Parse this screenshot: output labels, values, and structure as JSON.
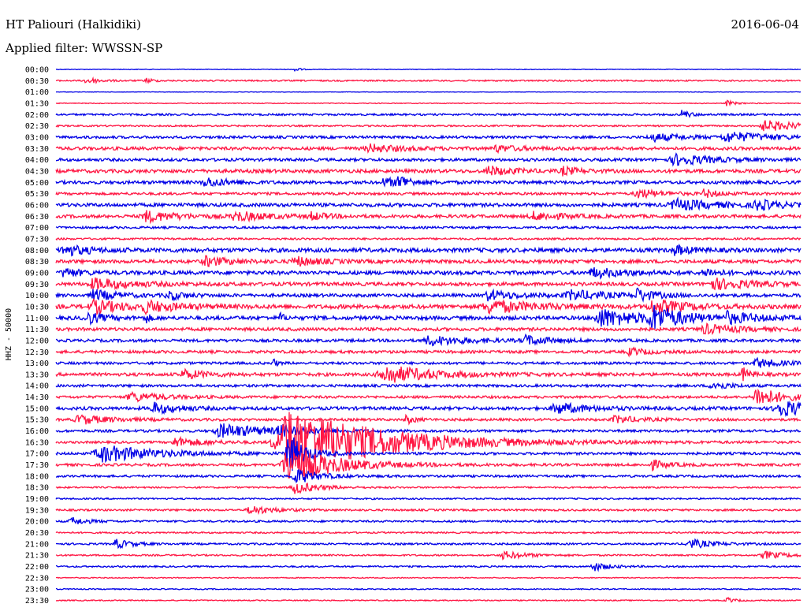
{
  "header": {
    "station": "HT Paliouri (Halkidiki)",
    "date": "2016-06-04",
    "filter": "Applied filter: WWSSN-SP"
  },
  "colors": {
    "primary": "#0000e6",
    "secondary": "#ff1744",
    "background": "#ffffff",
    "text": "#000000"
  },
  "chart_data": {
    "type": "line",
    "title": "",
    "ylabel": "HHZ - 50000",
    "xlabel": "",
    "grid": false,
    "legend": "none",
    "row_labels": [
      "00:00",
      "00:30",
      "01:00",
      "01:30",
      "02:00",
      "02:30",
      "03:00",
      "03:30",
      "04:00",
      "04:30",
      "05:00",
      "05:30",
      "06:00",
      "06:30",
      "07:00",
      "07:30",
      "08:00",
      "08:30",
      "09:00",
      "09:30",
      "10:00",
      "10:30",
      "11:00",
      "11:30",
      "12:00",
      "12:30",
      "13:00",
      "13:30",
      "14:00",
      "14:30",
      "15:00",
      "15:30",
      "16:00",
      "16:30",
      "17:00",
      "17:30",
      "18:00",
      "18:30",
      "19:00",
      "19:30",
      "20:00",
      "20:30",
      "21:00",
      "21:30",
      "22:00",
      "22:30",
      "23:00",
      "23:30"
    ],
    "row_noise": [
      0.4,
      0.9,
      0.3,
      0.5,
      1.2,
      1.0,
      1.6,
      2.0,
      1.8,
      2.2,
      2.0,
      1.6,
      2.2,
      2.0,
      1.4,
      1.2,
      2.6,
      2.2,
      2.4,
      2.2,
      2.0,
      2.6,
      2.4,
      2.0,
      1.8,
      1.8,
      1.6,
      2.0,
      1.6,
      1.6,
      2.0,
      1.6,
      1.6,
      1.4,
      1.6,
      1.6,
      1.4,
      1.0,
      1.0,
      1.2,
      1.2,
      1.0,
      1.2,
      1.0,
      1.0,
      0.6,
      0.7,
      0.7
    ],
    "events": [
      {
        "row": 0,
        "t": 0.32,
        "amp": 5,
        "dur": 0.005
      },
      {
        "row": 1,
        "t": 0.04,
        "amp": 5,
        "dur": 0.015
      },
      {
        "row": 1,
        "t": 0.12,
        "amp": 4,
        "dur": 0.008
      },
      {
        "row": 3,
        "t": 0.9,
        "amp": 4,
        "dur": 0.01
      },
      {
        "row": 4,
        "t": 0.84,
        "amp": 6,
        "dur": 0.01
      },
      {
        "row": 5,
        "t": 0.95,
        "amp": 7,
        "dur": 0.05
      },
      {
        "row": 6,
        "t": 0.9,
        "amp": 6,
        "dur": 0.06
      },
      {
        "row": 6,
        "t": 0.8,
        "amp": 5,
        "dur": 0.04
      },
      {
        "row": 7,
        "t": 0.42,
        "amp": 5,
        "dur": 0.04
      },
      {
        "row": 7,
        "t": 0.59,
        "amp": 4,
        "dur": 0.03
      },
      {
        "row": 8,
        "t": 0.83,
        "amp": 7,
        "dur": 0.05
      },
      {
        "row": 9,
        "t": 0.58,
        "amp": 6,
        "dur": 0.03
      },
      {
        "row": 9,
        "t": 0.68,
        "amp": 5,
        "dur": 0.02
      },
      {
        "row": 10,
        "t": 0.2,
        "amp": 6,
        "dur": 0.03
      },
      {
        "row": 10,
        "t": 0.46,
        "amp": 10,
        "dur": 0.01
      },
      {
        "row": 10,
        "t": 0.44,
        "amp": 5,
        "dur": 0.03
      },
      {
        "row": 11,
        "t": 0.78,
        "amp": 6,
        "dur": 0.03
      },
      {
        "row": 11,
        "t": 0.87,
        "amp": 5,
        "dur": 0.02
      },
      {
        "row": 12,
        "t": 0.83,
        "amp": 7,
        "dur": 0.05
      },
      {
        "row": 12,
        "t": 0.94,
        "amp": 6,
        "dur": 0.03
      },
      {
        "row": 13,
        "t": 0.12,
        "amp": 7,
        "dur": 0.04
      },
      {
        "row": 13,
        "t": 0.24,
        "amp": 6,
        "dur": 0.04
      },
      {
        "row": 13,
        "t": 0.34,
        "amp": 5,
        "dur": 0.02
      },
      {
        "row": 13,
        "t": 0.64,
        "amp": 5,
        "dur": 0.04
      },
      {
        "row": 16,
        "t": 0.01,
        "amp": 7,
        "dur": 0.03
      },
      {
        "row": 16,
        "t": 0.83,
        "amp": 6,
        "dur": 0.02
      },
      {
        "row": 17,
        "t": 0.2,
        "amp": 6,
        "dur": 0.03
      },
      {
        "row": 17,
        "t": 0.32,
        "amp": 6,
        "dur": 0.03
      },
      {
        "row": 18,
        "t": 0.01,
        "amp": 6,
        "dur": 0.02
      },
      {
        "row": 18,
        "t": 0.72,
        "amp": 6,
        "dur": 0.04
      },
      {
        "row": 18,
        "t": 0.87,
        "amp": 5,
        "dur": 0.02
      },
      {
        "row": 19,
        "t": 0.05,
        "amp": 7,
        "dur": 0.05
      },
      {
        "row": 19,
        "t": 0.88,
        "amp": 7,
        "dur": 0.05
      },
      {
        "row": 20,
        "t": 0.05,
        "amp": 7,
        "dur": 0.03
      },
      {
        "row": 20,
        "t": 0.15,
        "amp": 6,
        "dur": 0.02
      },
      {
        "row": 20,
        "t": 0.58,
        "amp": 6,
        "dur": 0.04
      },
      {
        "row": 20,
        "t": 0.69,
        "amp": 6,
        "dur": 0.05
      },
      {
        "row": 20,
        "t": 0.78,
        "amp": 8,
        "dur": 0.02
      },
      {
        "row": 21,
        "t": 0.05,
        "amp": 8,
        "dur": 0.04
      },
      {
        "row": 21,
        "t": 0.12,
        "amp": 6,
        "dur": 0.04
      },
      {
        "row": 21,
        "t": 0.58,
        "amp": 8,
        "dur": 0.06
      },
      {
        "row": 21,
        "t": 0.8,
        "amp": 9,
        "dur": 0.04
      },
      {
        "row": 22,
        "t": 0.04,
        "amp": 8,
        "dur": 0.02
      },
      {
        "row": 22,
        "t": 0.12,
        "amp": 7,
        "dur": 0.005
      },
      {
        "row": 22,
        "t": 0.3,
        "amp": 7,
        "dur": 0.005
      },
      {
        "row": 22,
        "t": 0.73,
        "amp": 12,
        "dur": 0.05
      },
      {
        "row": 22,
        "t": 0.8,
        "amp": 14,
        "dur": 0.04
      },
      {
        "row": 22,
        "t": 0.9,
        "amp": 6,
        "dur": 0.04
      },
      {
        "row": 23,
        "t": 0.87,
        "amp": 6,
        "dur": 0.04
      },
      {
        "row": 24,
        "t": 0.5,
        "amp": 6,
        "dur": 0.05
      },
      {
        "row": 24,
        "t": 0.63,
        "amp": 6,
        "dur": 0.03
      },
      {
        "row": 25,
        "t": 0.77,
        "amp": 5,
        "dur": 0.02
      },
      {
        "row": 26,
        "t": 0.29,
        "amp": 8,
        "dur": 0.005
      },
      {
        "row": 26,
        "t": 0.94,
        "amp": 6,
        "dur": 0.03
      },
      {
        "row": 27,
        "t": 0.17,
        "amp": 6,
        "dur": 0.03
      },
      {
        "row": 27,
        "t": 0.44,
        "amp": 12,
        "dur": 0.06
      },
      {
        "row": 27,
        "t": 0.92,
        "amp": 10,
        "dur": 0.01
      },
      {
        "row": 28,
        "t": 0.88,
        "amp": 6,
        "dur": 0.02
      },
      {
        "row": 29,
        "t": 0.1,
        "amp": 6,
        "dur": 0.04
      },
      {
        "row": 29,
        "t": 0.94,
        "amp": 14,
        "dur": 0.03
      },
      {
        "row": 30,
        "t": 0.13,
        "amp": 7,
        "dur": 0.03
      },
      {
        "row": 30,
        "t": 0.67,
        "amp": 7,
        "dur": 0.04
      },
      {
        "row": 30,
        "t": 0.97,
        "amp": 10,
        "dur": 0.05
      },
      {
        "row": 31,
        "t": 0.03,
        "amp": 6,
        "dur": 0.04
      },
      {
        "row": 31,
        "t": 0.47,
        "amp": 6,
        "dur": 0.01
      },
      {
        "row": 31,
        "t": 0.75,
        "amp": 5,
        "dur": 0.03
      },
      {
        "row": 32,
        "t": 0.22,
        "amp": 9,
        "dur": 0.06
      },
      {
        "row": 32,
        "t": 0.3,
        "amp": 6,
        "dur": 0.03
      },
      {
        "row": 33,
        "t": 0.31,
        "amp": 45,
        "dur": 0.12
      },
      {
        "row": 33,
        "t": 0.16,
        "amp": 6,
        "dur": 0.04
      },
      {
        "row": 34,
        "t": 0.06,
        "amp": 11,
        "dur": 0.07
      },
      {
        "row": 34,
        "t": 0.31,
        "amp": 30,
        "dur": 0.02
      },
      {
        "row": 35,
        "t": 0.31,
        "amp": 25,
        "dur": 0.06
      },
      {
        "row": 35,
        "t": 0.8,
        "amp": 6,
        "dur": 0.02
      },
      {
        "row": 36,
        "t": 0.32,
        "amp": 10,
        "dur": 0.03
      },
      {
        "row": 37,
        "t": 0.32,
        "amp": 8,
        "dur": 0.03
      },
      {
        "row": 39,
        "t": 0.26,
        "amp": 6,
        "dur": 0.03
      },
      {
        "row": 40,
        "t": 0.02,
        "amp": 5,
        "dur": 0.02
      },
      {
        "row": 42,
        "t": 0.08,
        "amp": 6,
        "dur": 0.02
      },
      {
        "row": 42,
        "t": 0.85,
        "amp": 6,
        "dur": 0.03
      },
      {
        "row": 43,
        "t": 0.6,
        "amp": 5,
        "dur": 0.03
      },
      {
        "row": 43,
        "t": 0.95,
        "amp": 5,
        "dur": 0.03
      },
      {
        "row": 44,
        "t": 0.72,
        "amp": 6,
        "dur": 0.02
      },
      {
        "row": 47,
        "t": 0.9,
        "amp": 4,
        "dur": 0.01
      }
    ]
  }
}
